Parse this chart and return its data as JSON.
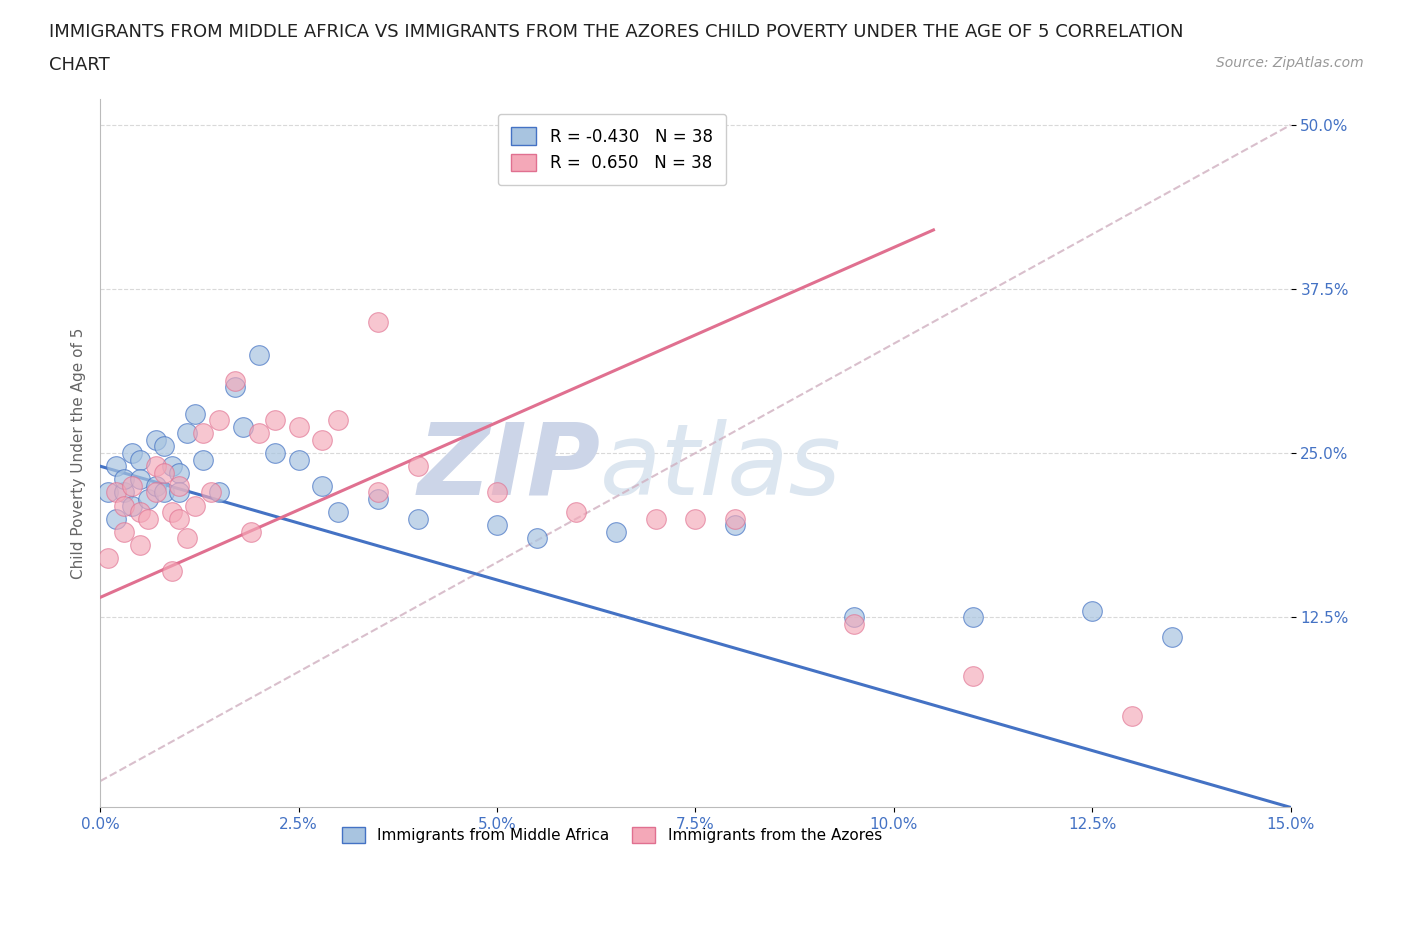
{
  "title_line1": "IMMIGRANTS FROM MIDDLE AFRICA VS IMMIGRANTS FROM THE AZORES CHILD POVERTY UNDER THE AGE OF 5 CORRELATION",
  "title_line2": "CHART",
  "source": "Source: ZipAtlas.com",
  "ylabel": "Child Poverty Under the Age of 5",
  "legend_label1": "Immigrants from Middle Africa",
  "legend_label2": "Immigrants from the Azores",
  "R1": -0.43,
  "R2": 0.65,
  "N1": 38,
  "N2": 38,
  "blue_color": "#a8c4e0",
  "pink_color": "#f4a8b8",
  "blue_line_color": "#4472c4",
  "pink_line_color": "#e07090",
  "axis_label_color": "#4472c4",
  "xlim": [
    0.0,
    15.0
  ],
  "ylim": [
    -2.0,
    52.0
  ],
  "xticks": [
    0.0,
    2.5,
    5.0,
    7.5,
    10.0,
    12.5,
    15.0
  ],
  "yticks": [
    12.5,
    25.0,
    37.5,
    50.0
  ],
  "blue_scatter_x": [
    0.1,
    0.2,
    0.2,
    0.3,
    0.3,
    0.4,
    0.4,
    0.5,
    0.5,
    0.6,
    0.7,
    0.7,
    0.8,
    0.8,
    0.9,
    1.0,
    1.0,
    1.1,
    1.2,
    1.3,
    1.5,
    1.7,
    1.8,
    2.0,
    2.2,
    2.5,
    2.8,
    3.0,
    3.5,
    4.0,
    5.0,
    5.5,
    6.5,
    8.0,
    9.5,
    11.0,
    12.5,
    13.5
  ],
  "blue_scatter_y": [
    22.0,
    24.0,
    20.0,
    22.0,
    23.0,
    21.0,
    25.0,
    24.5,
    23.0,
    21.5,
    26.0,
    22.5,
    25.5,
    22.0,
    24.0,
    23.5,
    22.0,
    26.5,
    28.0,
    24.5,
    22.0,
    30.0,
    27.0,
    32.5,
    25.0,
    24.5,
    22.5,
    20.5,
    21.5,
    20.0,
    19.5,
    18.5,
    19.0,
    19.5,
    12.5,
    12.5,
    13.0,
    11.0
  ],
  "pink_scatter_x": [
    0.1,
    0.2,
    0.3,
    0.3,
    0.4,
    0.5,
    0.5,
    0.6,
    0.7,
    0.7,
    0.8,
    0.9,
    0.9,
    1.0,
    1.0,
    1.1,
    1.2,
    1.3,
    1.4,
    1.5,
    1.7,
    1.9,
    2.0,
    2.2,
    2.5,
    2.8,
    3.0,
    3.5,
    4.0,
    5.0,
    6.0,
    7.0,
    7.5,
    8.0,
    9.5,
    11.0,
    13.0,
    3.5
  ],
  "pink_scatter_y": [
    17.0,
    22.0,
    21.0,
    19.0,
    22.5,
    20.5,
    18.0,
    20.0,
    22.0,
    24.0,
    23.5,
    20.5,
    16.0,
    22.5,
    20.0,
    18.5,
    21.0,
    26.5,
    22.0,
    27.5,
    30.5,
    19.0,
    26.5,
    27.5,
    27.0,
    26.0,
    27.5,
    22.0,
    24.0,
    22.0,
    20.5,
    20.0,
    20.0,
    20.0,
    12.0,
    8.0,
    5.0,
    35.0
  ],
  "blue_trendline_x": [
    0.0,
    15.0
  ],
  "blue_trendline_y": [
    24.0,
    -2.0
  ],
  "pink_trendline_x": [
    0.0,
    10.5
  ],
  "pink_trendline_y": [
    14.0,
    42.0
  ],
  "ref_line_x": [
    0.0,
    15.0
  ],
  "ref_line_y": [
    0.0,
    50.0
  ],
  "background_color": "#ffffff",
  "grid_color": "#d0d0d0",
  "watermark_zip": "ZIP",
  "watermark_atlas": "atlas",
  "watermark_color": "#ccd5e8",
  "title_fontsize": 13,
  "axis_tick_fontsize": 11,
  "ylabel_fontsize": 11,
  "legend_fontsize": 11,
  "source_fontsize": 10
}
